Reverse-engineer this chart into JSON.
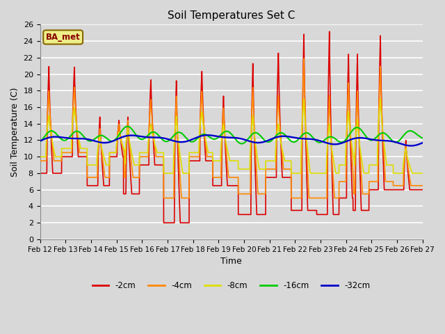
{
  "title": "Soil Temperatures Set C",
  "xlabel": "Time",
  "ylabel": "Soil Temperature (C)",
  "ylim": [
    0,
    26
  ],
  "yticks": [
    0,
    2,
    4,
    6,
    8,
    10,
    12,
    14,
    16,
    18,
    20,
    22,
    24,
    26
  ],
  "x_labels": [
    "Feb 12",
    "Feb 13",
    "Feb 14",
    "Feb 15",
    "Feb 16",
    "Feb 17",
    "Feb 18",
    "Feb 19",
    "Feb 20",
    "Feb 21",
    "Feb 22",
    "Feb 23",
    "Feb 24",
    "Feb 25",
    "Feb 26",
    "Feb 27"
  ],
  "colors": {
    "-2cm": "#dd0000",
    "-4cm": "#ff8800",
    "-8cm": "#dddd00",
    "-16cm": "#00cc00",
    "-32cm": "#0000cc"
  },
  "fig_bg": "#d8d8d8",
  "plot_bg": "#d8d8d8",
  "grid_color": "#ffffff",
  "annotation_text": "BA_met",
  "annotation_bg": "#eeee88",
  "annotation_border": "#886600",
  "peak_times": [
    0.35,
    1.35,
    2.35,
    3.1,
    3.45,
    4.35,
    5.35,
    6.35,
    7.2,
    8.35,
    9.35,
    10.35,
    11.35,
    12.1,
    12.45,
    13.35,
    14.35
  ],
  "peak_amps_2cm": [
    21,
    21,
    15,
    14.5,
    15,
    19.5,
    19.5,
    20.5,
    17.5,
    21.5,
    22.7,
    25,
    25.3,
    22.5,
    22.5,
    24.7,
    12
  ],
  "peak_amps_4cm": [
    18,
    18.5,
    13.5,
    14,
    14.5,
    17,
    17.5,
    18,
    16,
    18.5,
    17.5,
    22,
    17.5,
    19,
    18,
    21,
    11.5
  ],
  "peak_amps_8cm": [
    15,
    16,
    12.5,
    13,
    13.5,
    14,
    15,
    15.5,
    14,
    15,
    14,
    17,
    14,
    15.5,
    14.5,
    17,
    11
  ],
  "trough_amps_2cm": [
    8,
    10,
    6.5,
    10,
    5.5,
    9,
    2,
    9.5,
    6.5,
    3,
    7.5,
    3.5,
    3,
    5,
    3.5,
    6,
    6
  ],
  "trough_amps_4cm": [
    9.5,
    10.5,
    7.5,
    10.5,
    7.5,
    10,
    5,
    10,
    7.5,
    5.5,
    8.5,
    5,
    5,
    7,
    5.5,
    7,
    6.5
  ],
  "trough_amps_8cm": [
    10,
    11,
    9,
    10.5,
    9,
    10.5,
    8,
    10.5,
    9.5,
    8.5,
    9.5,
    8,
    8,
    9,
    8,
    9,
    8
  ]
}
